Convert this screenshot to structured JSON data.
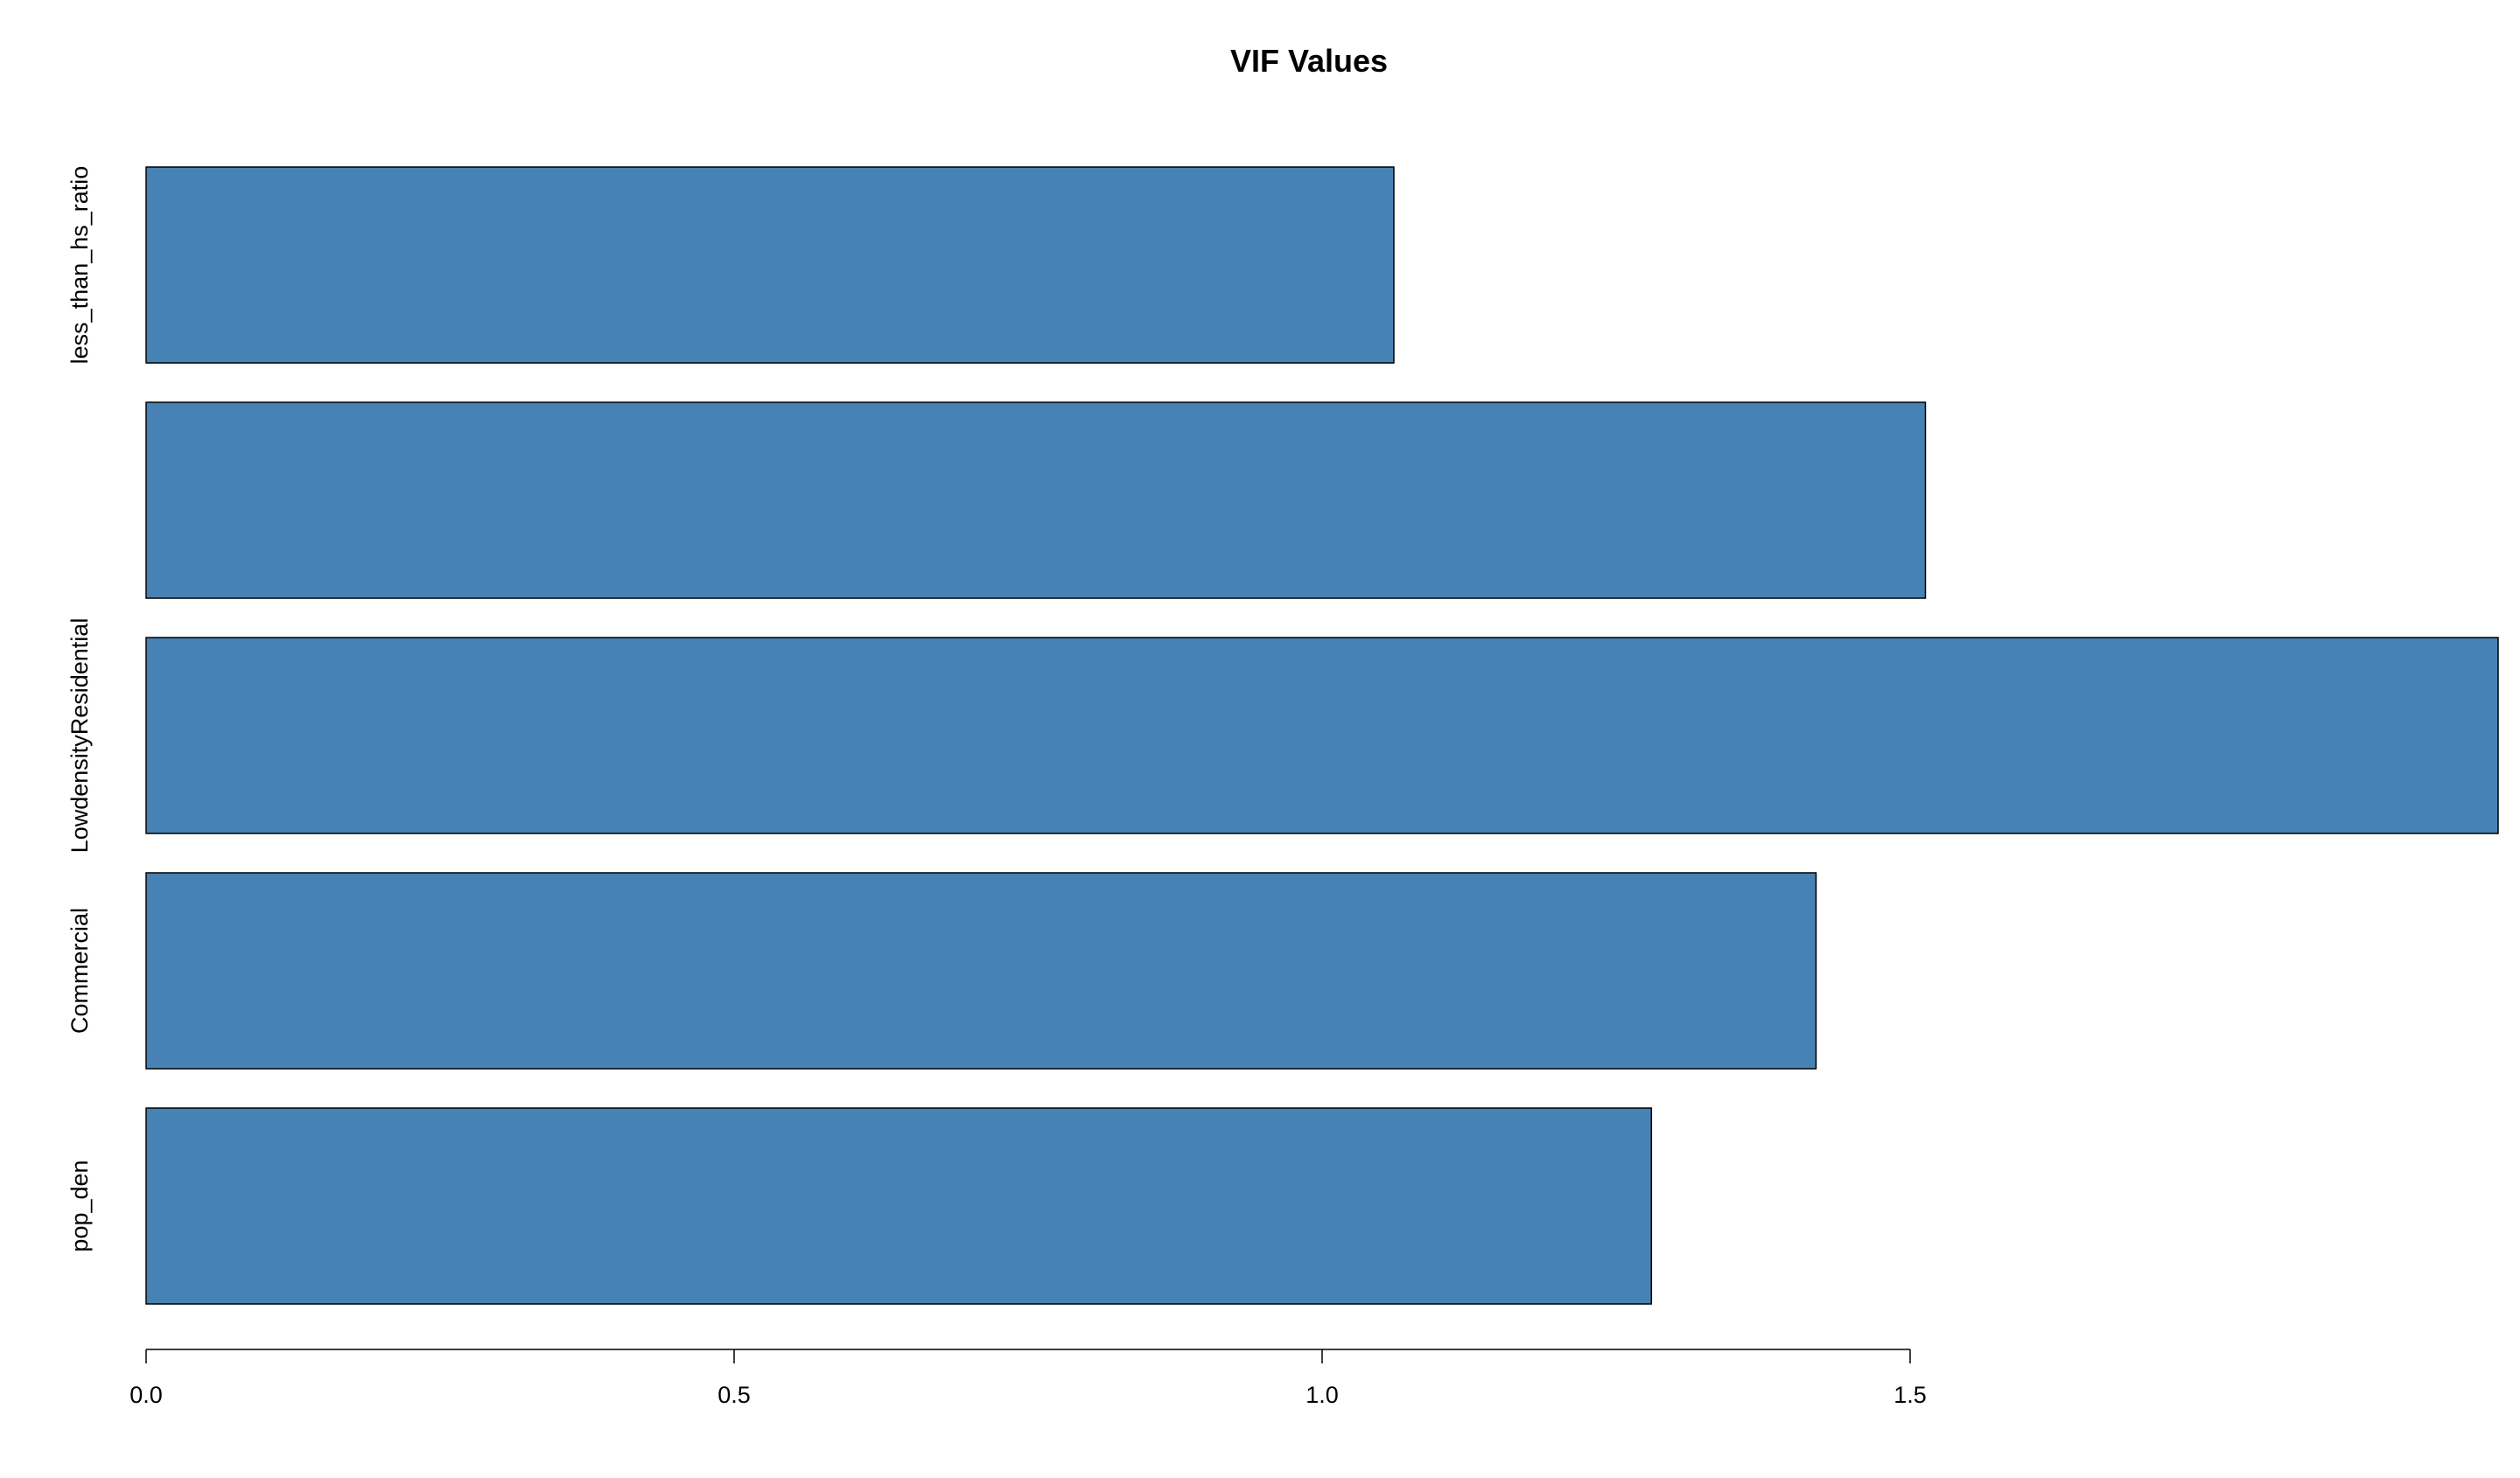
{
  "chart_data": {
    "type": "bar",
    "orientation": "horizontal",
    "title": "VIF Values",
    "xlabel": "",
    "ylabel": "",
    "categories": [
      "pop_den",
      "Commercial",
      "LowdensityResidential",
      "",
      "less_than_hs_ratio"
    ],
    "values": [
      1.28,
      1.42,
      2.0,
      1.513,
      1.061
    ],
    "xlim": [
      0,
      2.0
    ],
    "x_ticks": [
      0.0,
      0.5,
      1.0,
      1.5
    ],
    "x_tick_labels": [
      "0.0",
      "0.5",
      "1.0",
      "1.5"
    ],
    "bar_color": "#4682B4",
    "bar_border_color": "#000000",
    "grid": false,
    "legend": "none"
  }
}
